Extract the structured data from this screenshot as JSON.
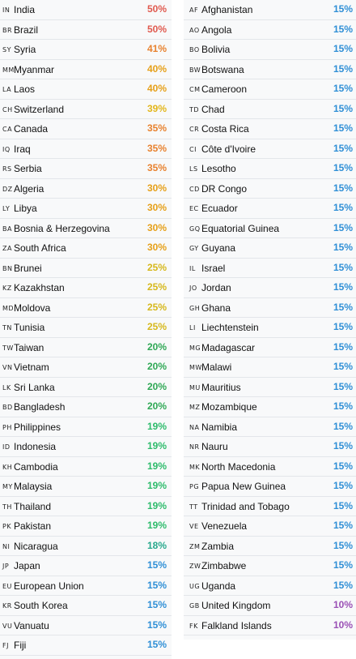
{
  "colors": {
    "50": "#e05a4f",
    "41": "#e8822f",
    "40": "#e6a019",
    "39": "#e3b61b",
    "35": "#e8822f",
    "30": "#e6a019",
    "25": "#d6b81c",
    "20": "#2fa855",
    "19": "#2dbb6b",
    "18": "#27a88c",
    "15": "#2f8fd6",
    "10": "#9a50b5"
  },
  "left": [
    {
      "code": "IN",
      "name": "India",
      "pct": "50%",
      "tier": "50"
    },
    {
      "code": "BR",
      "name": "Brazil",
      "pct": "50%",
      "tier": "50"
    },
    {
      "code": "SY",
      "name": "Syria",
      "pct": "41%",
      "tier": "41"
    },
    {
      "code": "MM",
      "name": "Myanmar",
      "pct": "40%",
      "tier": "40"
    },
    {
      "code": "LA",
      "name": "Laos",
      "pct": "40%",
      "tier": "40"
    },
    {
      "code": "CH",
      "name": "Switzerland",
      "pct": "39%",
      "tier": "39"
    },
    {
      "code": "CA",
      "name": "Canada",
      "pct": "35%",
      "tier": "35"
    },
    {
      "code": "IQ",
      "name": "Iraq",
      "pct": "35%",
      "tier": "35"
    },
    {
      "code": "RS",
      "name": "Serbia",
      "pct": "35%",
      "tier": "35"
    },
    {
      "code": "DZ",
      "name": "Algeria",
      "pct": "30%",
      "tier": "30"
    },
    {
      "code": "LY",
      "name": "Libya",
      "pct": "30%",
      "tier": "30"
    },
    {
      "code": "BA",
      "name": "Bosnia & Herzegovina",
      "pct": "30%",
      "tier": "30"
    },
    {
      "code": "ZA",
      "name": "South Africa",
      "pct": "30%",
      "tier": "30"
    },
    {
      "code": "BN",
      "name": "Brunei",
      "pct": "25%",
      "tier": "25"
    },
    {
      "code": "KZ",
      "name": "Kazakhstan",
      "pct": "25%",
      "tier": "25"
    },
    {
      "code": "MD",
      "name": "Moldova",
      "pct": "25%",
      "tier": "25"
    },
    {
      "code": "TN",
      "name": "Tunisia",
      "pct": "25%",
      "tier": "25"
    },
    {
      "code": "TW",
      "name": "Taiwan",
      "pct": "20%",
      "tier": "20"
    },
    {
      "code": "VN",
      "name": "Vietnam",
      "pct": "20%",
      "tier": "20"
    },
    {
      "code": "LK",
      "name": "Sri Lanka",
      "pct": "20%",
      "tier": "20"
    },
    {
      "code": "BD",
      "name": "Bangladesh",
      "pct": "20%",
      "tier": "20"
    },
    {
      "code": "PH",
      "name": "Philippines",
      "pct": "19%",
      "tier": "19"
    },
    {
      "code": "ID",
      "name": "Indonesia",
      "pct": "19%",
      "tier": "19"
    },
    {
      "code": "KH",
      "name": "Cambodia",
      "pct": "19%",
      "tier": "19"
    },
    {
      "code": "MY",
      "name": "Malaysia",
      "pct": "19%",
      "tier": "19"
    },
    {
      "code": "TH",
      "name": "Thailand",
      "pct": "19%",
      "tier": "19"
    },
    {
      "code": "PK",
      "name": "Pakistan",
      "pct": "19%",
      "tier": "19"
    },
    {
      "code": "NI",
      "name": "Nicaragua",
      "pct": "18%",
      "tier": "18"
    },
    {
      "code": "JP",
      "name": "Japan",
      "pct": "15%",
      "tier": "15"
    },
    {
      "code": "EU",
      "name": "European Union",
      "pct": "15%",
      "tier": "15"
    },
    {
      "code": "KR",
      "name": "South Korea",
      "pct": "15%",
      "tier": "15"
    },
    {
      "code": "VU",
      "name": "Vanuatu",
      "pct": "15%",
      "tier": "15"
    },
    {
      "code": "FJ",
      "name": "Fiji",
      "pct": "15%",
      "tier": "15"
    }
  ],
  "right": [
    {
      "code": "AF",
      "name": "Afghanistan",
      "pct": "15%",
      "tier": "15"
    },
    {
      "code": "AO",
      "name": "Angola",
      "pct": "15%",
      "tier": "15"
    },
    {
      "code": "BO",
      "name": "Bolivia",
      "pct": "15%",
      "tier": "15"
    },
    {
      "code": "BW",
      "name": "Botswana",
      "pct": "15%",
      "tier": "15"
    },
    {
      "code": "CM",
      "name": "Cameroon",
      "pct": "15%",
      "tier": "15"
    },
    {
      "code": "TD",
      "name": "Chad",
      "pct": "15%",
      "tier": "15"
    },
    {
      "code": "CR",
      "name": "Costa Rica",
      "pct": "15%",
      "tier": "15"
    },
    {
      "code": "CI",
      "name": "Côte d'Ivoire",
      "pct": "15%",
      "tier": "15"
    },
    {
      "code": "LS",
      "name": "Lesotho",
      "pct": "15%",
      "tier": "15"
    },
    {
      "code": "CD",
      "name": "DR Congo",
      "pct": "15%",
      "tier": "15"
    },
    {
      "code": "EC",
      "name": "Ecuador",
      "pct": "15%",
      "tier": "15"
    },
    {
      "code": "GQ",
      "name": "Equatorial Guinea",
      "pct": "15%",
      "tier": "15"
    },
    {
      "code": "GY",
      "name": "Guyana",
      "pct": "15%",
      "tier": "15"
    },
    {
      "code": "IL",
      "name": "Israel",
      "pct": "15%",
      "tier": "15"
    },
    {
      "code": "JO",
      "name": "Jordan",
      "pct": "15%",
      "tier": "15"
    },
    {
      "code": "GH",
      "name": "Ghana",
      "pct": "15%",
      "tier": "15"
    },
    {
      "code": "LI",
      "name": "Liechtenstein",
      "pct": "15%",
      "tier": "15"
    },
    {
      "code": "MG",
      "name": "Madagascar",
      "pct": "15%",
      "tier": "15"
    },
    {
      "code": "MW",
      "name": "Malawi",
      "pct": "15%",
      "tier": "15"
    },
    {
      "code": "MU",
      "name": "Mauritius",
      "pct": "15%",
      "tier": "15"
    },
    {
      "code": "MZ",
      "name": "Mozambique",
      "pct": "15%",
      "tier": "15"
    },
    {
      "code": "NA",
      "name": "Namibia",
      "pct": "15%",
      "tier": "15"
    },
    {
      "code": "NR",
      "name": "Nauru",
      "pct": "15%",
      "tier": "15"
    },
    {
      "code": "MK",
      "name": "North Macedonia",
      "pct": "15%",
      "tier": "15"
    },
    {
      "code": "PG",
      "name": "Papua New Guinea",
      "pct": "15%",
      "tier": "15"
    },
    {
      "code": "TT",
      "name": "Trinidad and Tobago",
      "pct": "15%",
      "tier": "15"
    },
    {
      "code": "VE",
      "name": "Venezuela",
      "pct": "15%",
      "tier": "15"
    },
    {
      "code": "ZM",
      "name": "Zambia",
      "pct": "15%",
      "tier": "15"
    },
    {
      "code": "ZW",
      "name": "Zimbabwe",
      "pct": "15%",
      "tier": "15"
    },
    {
      "code": "UG",
      "name": "Uganda",
      "pct": "15%",
      "tier": "15"
    },
    {
      "code": "GB",
      "name": "United Kingdom",
      "pct": "10%",
      "tier": "10"
    },
    {
      "code": "FK",
      "name": "Falkland Islands",
      "pct": "10%",
      "tier": "10"
    }
  ]
}
